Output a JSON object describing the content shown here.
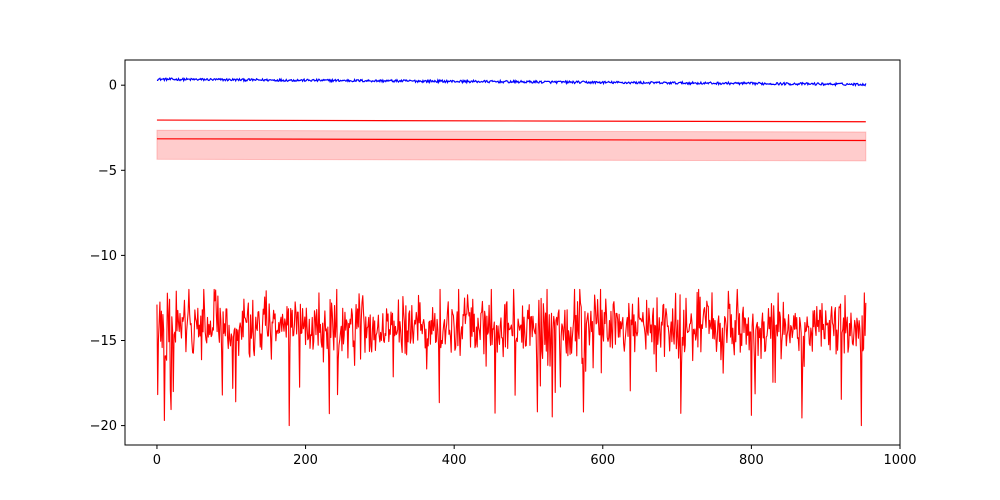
{
  "chart_data": {
    "type": "line",
    "title": "",
    "xlabel": "",
    "ylabel": "",
    "xlim": [
      -43,
      1000
    ],
    "ylim": [
      -21.14,
      1.48
    ],
    "grid": false,
    "legend": "none",
    "x_ticks": [
      {
        "value": 0,
        "label": "0"
      },
      {
        "value": 200,
        "label": "200"
      },
      {
        "value": 400,
        "label": "400"
      },
      {
        "value": 600,
        "label": "600"
      },
      {
        "value": 800,
        "label": "800"
      },
      {
        "value": 1000,
        "label": "1000"
      }
    ],
    "y_ticks": [
      {
        "value": 0,
        "label": "0"
      },
      {
        "value": -5,
        "label": "−5"
      },
      {
        "value": -10,
        "label": "−10"
      },
      {
        "value": -15,
        "label": "−15"
      },
      {
        "value": -20,
        "label": "−20"
      }
    ],
    "n_points": 955,
    "series": [
      {
        "kind": "noisy_line",
        "color": "#0000ff",
        "start": 0.35,
        "end": 0.05,
        "noise_amplitude": 0.12
      },
      {
        "kind": "smooth_line",
        "color": "#ff0000",
        "start": -2.05,
        "end": -2.15
      },
      {
        "kind": "line_with_band",
        "color": "#ff0000",
        "band_color": "#ff0000",
        "band_opacity": 0.2,
        "start": -3.15,
        "end": -3.25,
        "band_upper_start": -2.65,
        "band_upper_end": -2.75,
        "band_lower_start": -4.35,
        "band_lower_end": -4.45
      },
      {
        "kind": "noisy_line",
        "color": "#ff0000",
        "mean": -14.2,
        "noise_amplitude": 0.9,
        "range": [
          -20.1,
          -12.0
        ],
        "spikes": [
          {
            "x": 10,
            "y": -19.7
          },
          {
            "x": 106,
            "y": -18.6
          },
          {
            "x": 178,
            "y": -20.0
          },
          {
            "x": 232,
            "y": -19.3
          },
          {
            "x": 800,
            "y": -19.4
          },
          {
            "x": 948,
            "y": -20.0
          }
        ]
      }
    ]
  }
}
